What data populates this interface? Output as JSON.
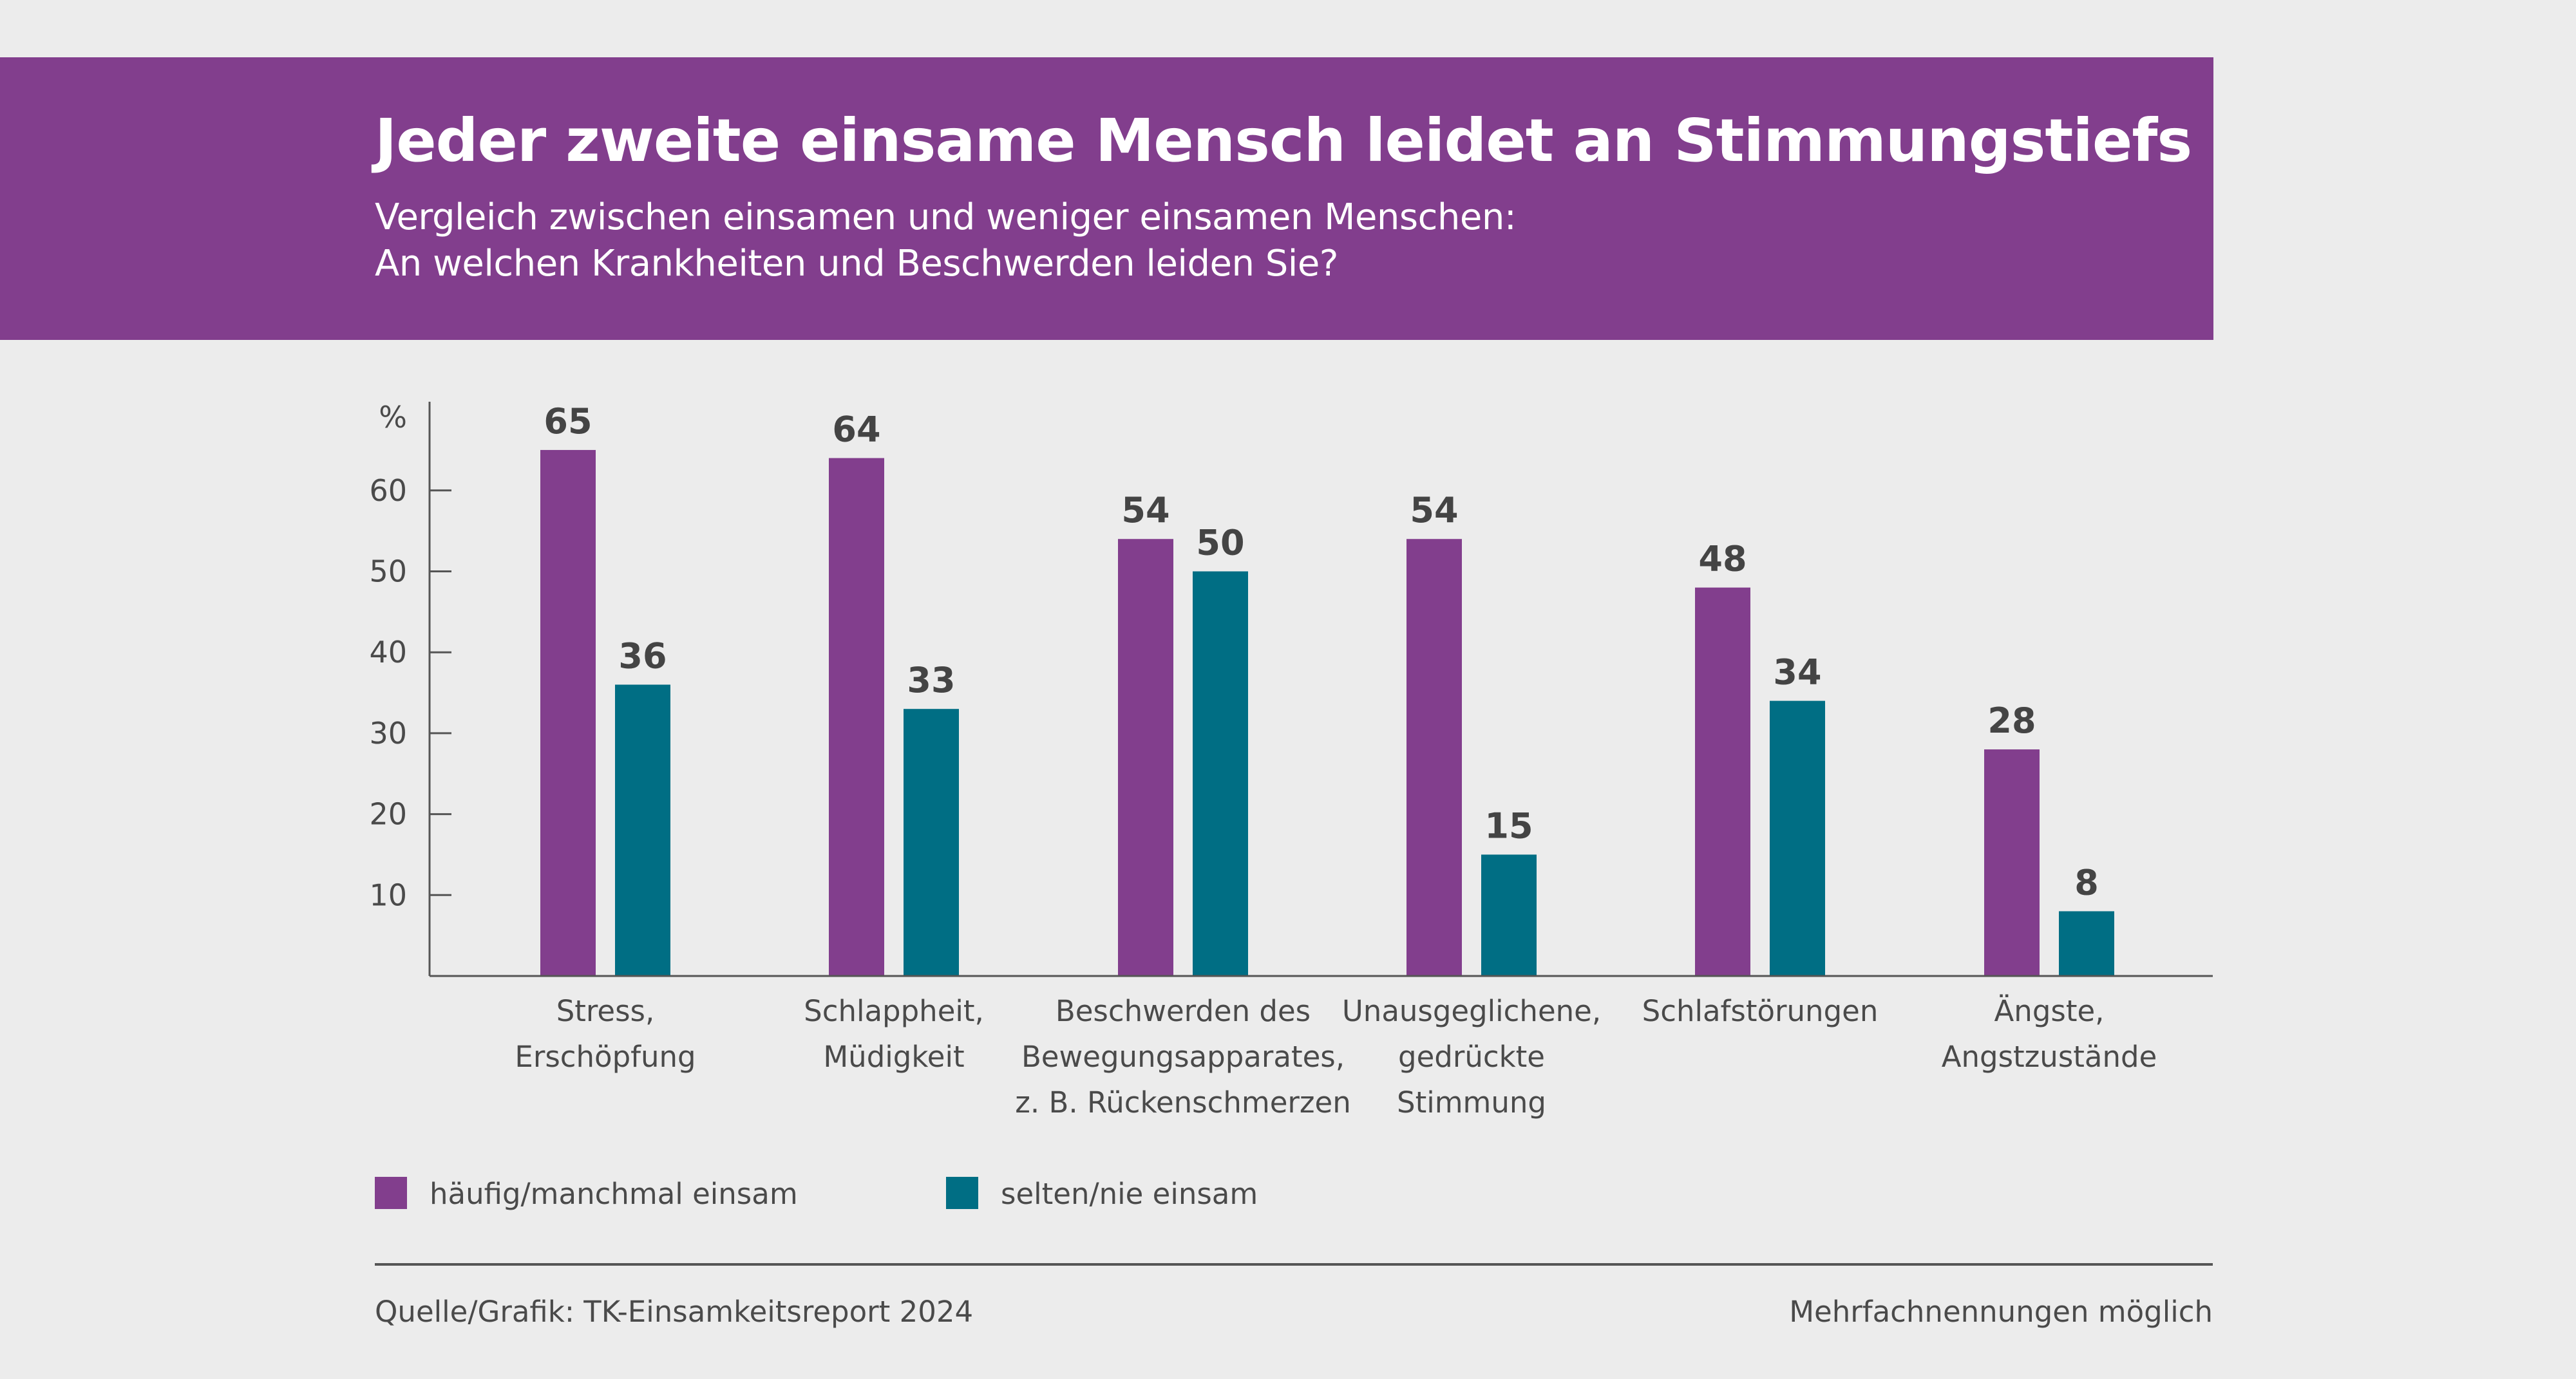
{
  "header": {
    "title": "Jeder zweite einsame Mensch leidet an Stimmungstiefs",
    "subtitle_lines": [
      "Vergleich zwischen einsamen und weniger einsamen Menschen:",
      "An welchen Krankheiten und Beschwerden leiden Sie?"
    ]
  },
  "footer": {
    "source": "Quelle/Grafik: TK-Einsamkeitsreport 2024",
    "note": "Mehrfachnennungen möglich"
  },
  "colors": {
    "series_1": "#823e8d",
    "series_2": "#006e84",
    "background": "#ececec",
    "axis": "#555555"
  },
  "chart_data": {
    "type": "bar",
    "title": "Jeder zweite einsame Mensch leidet an Stimmungstiefs",
    "xlabel": "",
    "ylabel": "%",
    "ylim": [
      0,
      70
    ],
    "yticks": [
      10,
      20,
      30,
      40,
      50,
      60
    ],
    "grid": false,
    "legend_position": "bottom-left",
    "categories": [
      [
        "Stress,",
        "Erschöpfung"
      ],
      [
        "Schlappheit,",
        "Müdigkeit"
      ],
      [
        "Beschwerden des",
        "Bewegungsapparates,",
        "z. B. Rückenschmerzen"
      ],
      [
        "Unausgeglichene,",
        "gedrückte",
        "Stimmung"
      ],
      [
        "Schlafstörungen"
      ],
      [
        "Ängste,",
        "Angstzustände"
      ]
    ],
    "series": [
      {
        "name": "häufig/manchmal einsam",
        "color": "#823e8d",
        "values": [
          65,
          64,
          54,
          54,
          48,
          28
        ]
      },
      {
        "name": "selten/nie einsam",
        "color": "#006e84",
        "values": [
          36,
          33,
          50,
          15,
          34,
          8
        ]
      }
    ]
  }
}
